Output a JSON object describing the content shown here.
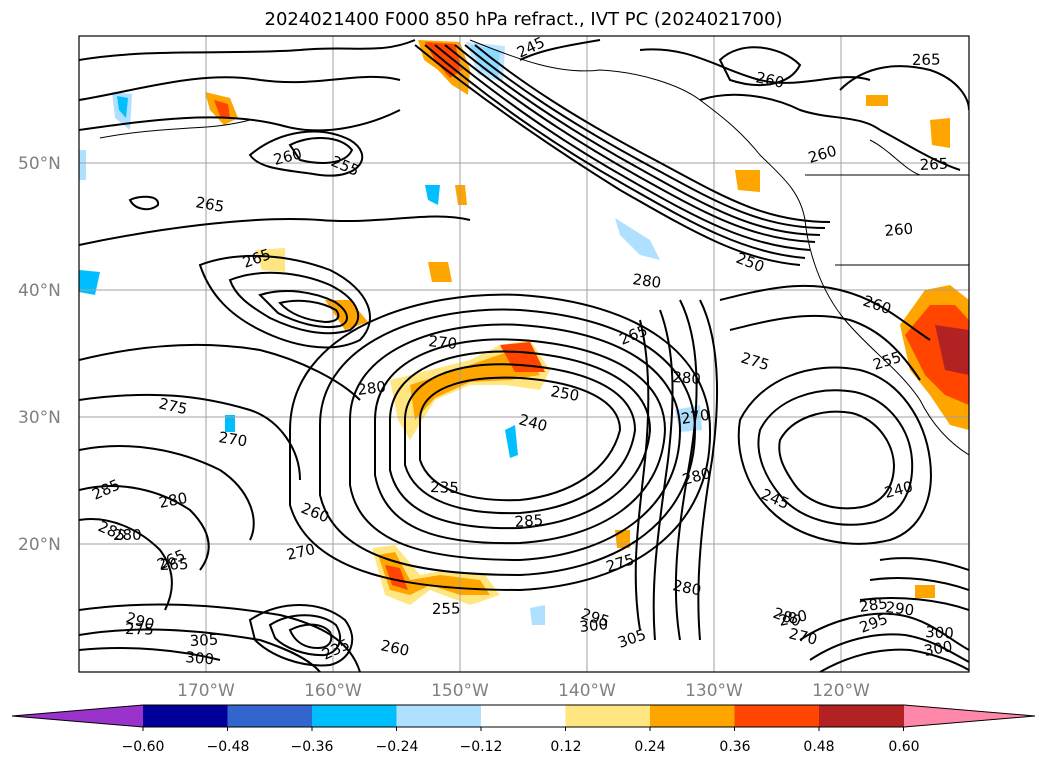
{
  "title": "2024021400 F000 850 hPa refract., IVT PC (2024021700)",
  "lat_labels": [
    "50°N",
    "40°N",
    "30°N",
    "20°N"
  ],
  "lon_labels": [
    "170°W",
    "160°W",
    "150°W",
    "140°W",
    "130°W",
    "120°W"
  ],
  "contour_labels": [
    "245",
    "260",
    "265",
    "260",
    "255",
    "265",
    "265",
    "260",
    "250",
    "280",
    "260",
    "255",
    "260",
    "270",
    "280",
    "265",
    "275",
    "280",
    "270",
    "265",
    "240",
    "235",
    "280",
    "285",
    "275",
    "280",
    "270",
    "285",
    "280",
    "265",
    "280",
    "260",
    "270",
    "285",
    "275",
    "280",
    "290",
    "300",
    "305",
    "295",
    "300",
    "285",
    "295",
    "290",
    "300",
    "300",
    "265",
    "270",
    "275",
    "280",
    "235",
    "260",
    "255",
    "240",
    "245",
    "250",
    "305"
  ],
  "colorbar": {
    "ticks": [
      "−0.60",
      "−0.48",
      "−0.36",
      "−0.24",
      "−0.12",
      "0.12",
      "0.24",
      "0.36",
      "0.48",
      "0.60"
    ],
    "colors": [
      "#9933cc",
      "#000099",
      "#3366cc",
      "#00bfff",
      "#b0e0ff",
      "#ffffff",
      "#ffe680",
      "#ffa500",
      "#ff4500",
      "#b22222",
      "#ff88aa"
    ]
  },
  "fill_colors": {
    "orange_light": "#ffe680",
    "orange": "#ffa500",
    "red_orange": "#ff4500",
    "dark_red": "#b22222",
    "cyan": "#00bfff",
    "light_blue": "#b0e0ff"
  }
}
